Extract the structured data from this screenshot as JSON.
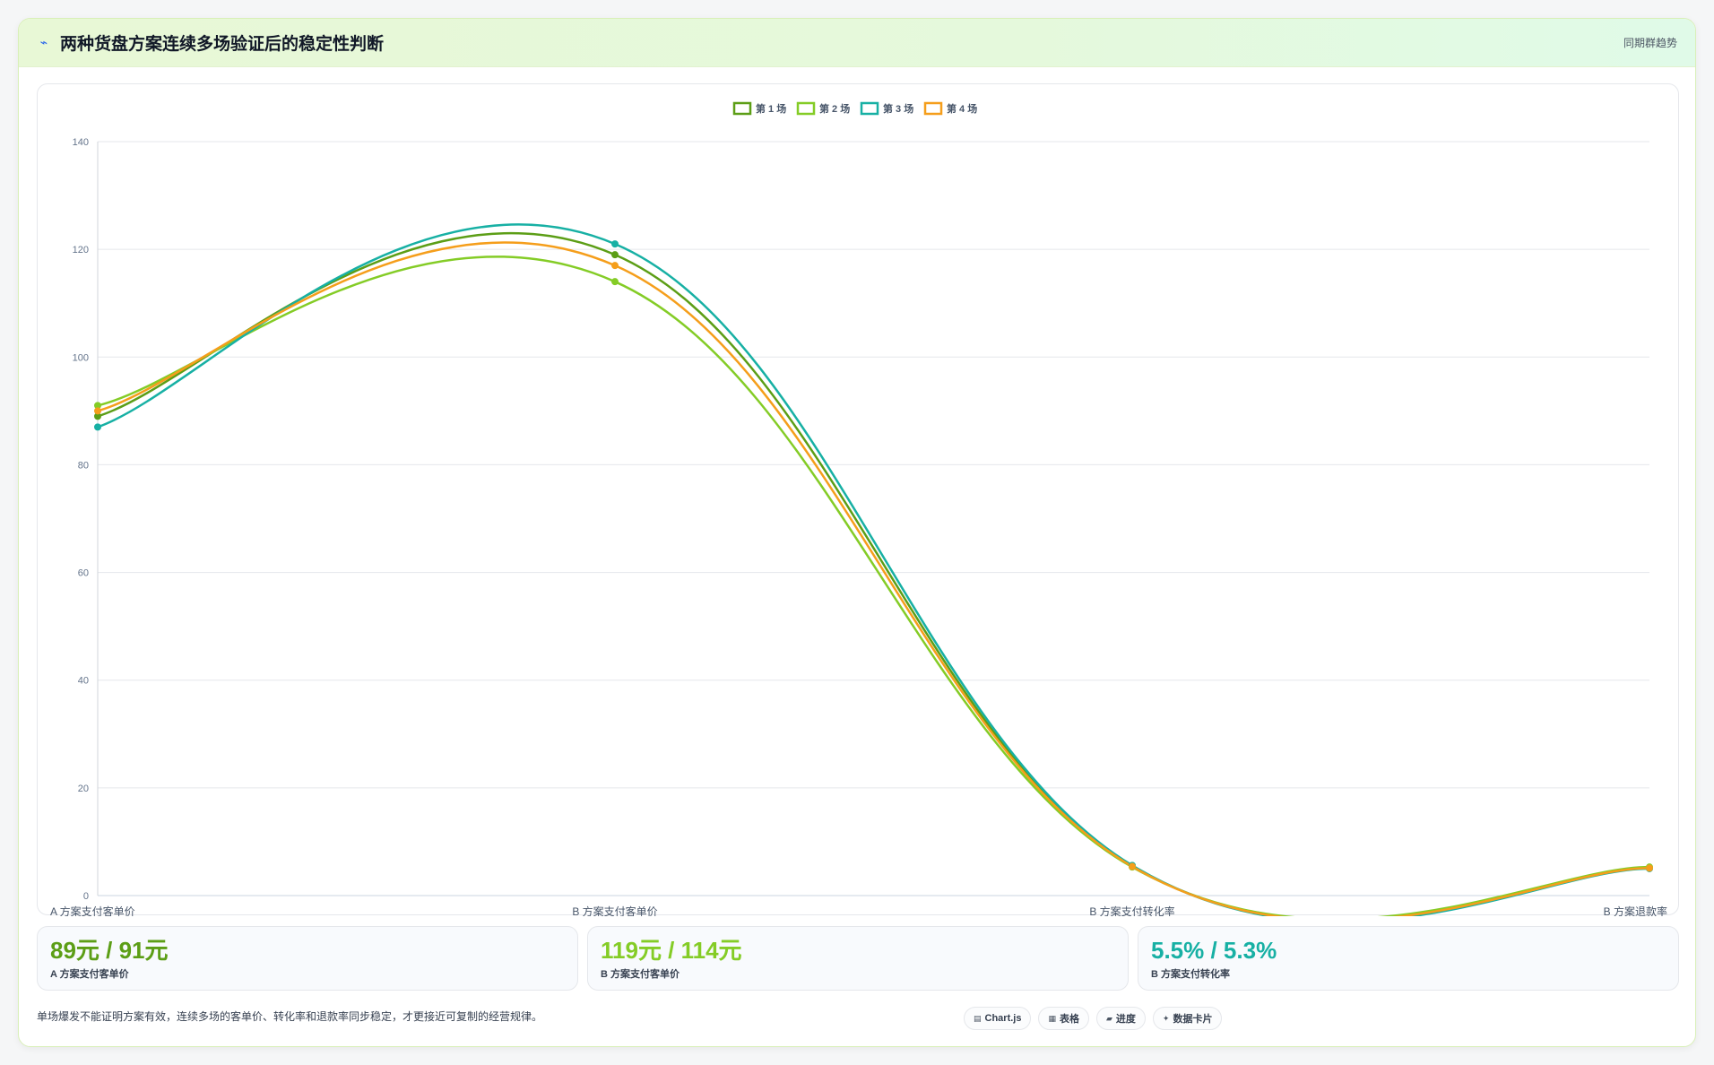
{
  "header": {
    "title_icon": "line-chart-icon",
    "title": "两种货盘方案连续多场验证后的稳定性判断",
    "right_label": "同期群趋势"
  },
  "colors": {
    "series1": "#5c9e16",
    "series2": "#84cc26",
    "series3": "#17b0a4",
    "series4": "#f59e1b",
    "grid": "#e5e7eb",
    "tick": "#64748b"
  },
  "chart_data": {
    "type": "line",
    "categories": [
      "A 方案支付客单价",
      "B 方案支付客单价",
      "B 方案支付转化率",
      "B 方案退款率"
    ],
    "ylim": [
      0,
      140
    ],
    "yticks": [
      0,
      20,
      40,
      60,
      80,
      100,
      120,
      140
    ],
    "grid": true,
    "legend_position": "top-center",
    "series": [
      {
        "name": "第 1 场",
        "values": [
          89,
          119,
          5.5,
          5.2
        ]
      },
      {
        "name": "第 2 场",
        "values": [
          91,
          114,
          5.3,
          5.3
        ]
      },
      {
        "name": "第 3 场",
        "values": [
          87,
          121,
          5.6,
          5.0
        ]
      },
      {
        "name": "第 4 场",
        "values": [
          90,
          117,
          5.4,
          5.1
        ]
      }
    ]
  },
  "stats": [
    {
      "value": "89元 / 91元",
      "label": "A 方案支付客单价",
      "color": "#5c9e16"
    },
    {
      "value": "119元 / 114元",
      "label": "B 方案支付客单价",
      "color": "#84cc26"
    },
    {
      "value": "5.5% / 5.3%",
      "label": "B 方案支付转化率",
      "color": "#17b0a4"
    }
  ],
  "footer": {
    "note": "单场爆发不能证明方案有效，连续多场的客单价、转化率和退款率同步稳定，才更接近可复制的经营规律。",
    "chips": [
      {
        "icon": "chart-icon",
        "glyph": "▤",
        "label": "Chart.js"
      },
      {
        "icon": "table-icon",
        "glyph": "▦",
        "label": "表格"
      },
      {
        "icon": "progress-icon",
        "glyph": "▰",
        "label": "进度"
      },
      {
        "icon": "card-icon",
        "glyph": "✦",
        "label": "数据卡片"
      }
    ]
  }
}
